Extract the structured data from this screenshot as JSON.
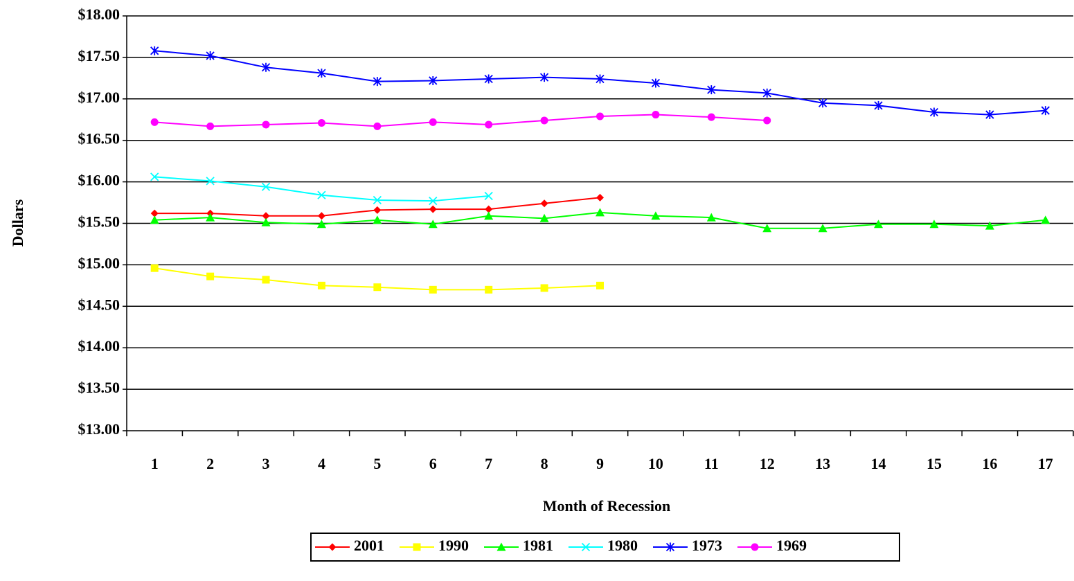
{
  "chart_data": {
    "type": "line",
    "x_label": "Month of Recession",
    "y_label": "Dollars",
    "categories": [
      "1",
      "2",
      "3",
      "4",
      "5",
      "6",
      "7",
      "8",
      "9",
      "10",
      "11",
      "12",
      "13",
      "14",
      "15",
      "16",
      "17"
    ],
    "ylim": [
      13,
      18
    ],
    "yticks": [
      {
        "value": 13,
        "label": "$13.00"
      },
      {
        "value": 13.5,
        "label": "$13.50"
      },
      {
        "value": 14,
        "label": "$14.00"
      },
      {
        "value": 14.5,
        "label": "$14.50"
      },
      {
        "value": 15,
        "label": "$15.00"
      },
      {
        "value": 15.5,
        "label": "$15.50"
      },
      {
        "value": 16,
        "label": "$16.00"
      },
      {
        "value": 16.5,
        "label": "$16.50"
      },
      {
        "value": 17,
        "label": "$17.00"
      },
      {
        "value": 17.5,
        "label": "$17.50"
      },
      {
        "value": 18,
        "label": "$18.00"
      }
    ],
    "grid": true,
    "legend": "bottom",
    "series": [
      {
        "name": "2001",
        "color": "#ff0000",
        "marker": "diamond",
        "values": [
          15.62,
          15.62,
          15.59,
          15.59,
          15.66,
          15.67,
          15.67,
          15.74,
          15.81,
          null,
          null,
          null,
          null,
          null,
          null,
          null,
          null
        ]
      },
      {
        "name": "1990",
        "color": "#ffff00",
        "marker": "square",
        "values": [
          14.96,
          14.86,
          14.82,
          14.75,
          14.73,
          14.7,
          14.7,
          14.72,
          14.75,
          null,
          null,
          null,
          null,
          null,
          null,
          null,
          null
        ]
      },
      {
        "name": "1981",
        "color": "#00ff00",
        "marker": "triangle",
        "values": [
          15.54,
          15.57,
          15.51,
          15.49,
          15.54,
          15.49,
          15.59,
          15.56,
          15.63,
          15.59,
          15.57,
          15.44,
          15.44,
          15.49,
          15.49,
          15.47,
          15.54
        ]
      },
      {
        "name": "1980",
        "color": "#00ffff",
        "marker": "x",
        "values": [
          16.06,
          16.01,
          15.94,
          15.84,
          15.78,
          15.77,
          15.83,
          null,
          null,
          null,
          null,
          null,
          null,
          null,
          null,
          null,
          null
        ]
      },
      {
        "name": "1973",
        "color": "#0000ff",
        "marker": "star",
        "values": [
          17.58,
          17.52,
          17.38,
          17.31,
          17.21,
          17.22,
          17.24,
          17.26,
          17.24,
          17.19,
          17.11,
          17.07,
          16.95,
          16.92,
          16.84,
          16.81,
          16.86
        ]
      },
      {
        "name": "1969",
        "color": "#ff00ff",
        "marker": "circle",
        "values": [
          16.72,
          16.67,
          16.69,
          16.71,
          16.67,
          16.72,
          16.69,
          16.74,
          16.79,
          16.81,
          16.78,
          16.74,
          null,
          null,
          null,
          null,
          null
        ]
      }
    ]
  }
}
